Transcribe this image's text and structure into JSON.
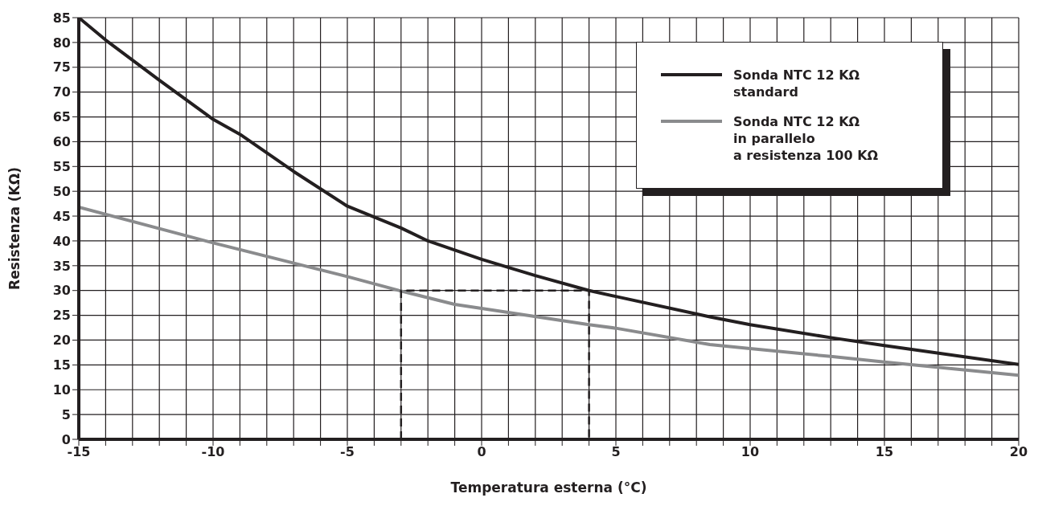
{
  "chart_data": {
    "type": "line",
    "xlabel": "Temperatura esterna (°C)",
    "ylabel": "Resistenza (KΩ)",
    "xlim": [
      -15,
      20
    ],
    "ylim": [
      0,
      85
    ],
    "xticks": [
      -15,
      {
        "value": -14,
        "label": null
      },
      {
        "value": -13,
        "label": null
      },
      {
        "value": -12,
        "label": null
      },
      {
        "value": -11,
        "label": null
      },
      -10,
      {
        "value": -9,
        "label": null
      },
      {
        "value": -8,
        "label": null
      },
      {
        "value": -7,
        "label": null
      },
      {
        "value": -6,
        "label": null
      },
      -5,
      {
        "value": -4,
        "label": null
      },
      {
        "value": -3,
        "label": null
      },
      {
        "value": -2,
        "label": null
      },
      {
        "value": -1,
        "label": null
      },
      0,
      {
        "value": 1,
        "label": null
      },
      {
        "value": 2,
        "label": null
      },
      {
        "value": 3,
        "label": null
      },
      {
        "value": 4,
        "label": null
      },
      5,
      {
        "value": 6,
        "label": null
      },
      {
        "value": 7,
        "label": null
      },
      {
        "value": 8,
        "label": null
      },
      {
        "value": 9,
        "label": null
      },
      10,
      {
        "value": 11,
        "label": null
      },
      {
        "value": 12,
        "label": null
      },
      {
        "value": 13,
        "label": null
      },
      {
        "value": 14,
        "label": null
      },
      15,
      {
        "value": 16,
        "label": null
      },
      {
        "value": 17,
        "label": null
      },
      {
        "value": 18,
        "label": null
      },
      {
        "value": 19,
        "label": null
      },
      20
    ],
    "yticks": [
      0,
      5,
      10,
      15,
      20,
      25,
      30,
      35,
      40,
      45,
      50,
      55,
      60,
      65,
      70,
      75,
      80,
      85
    ],
    "grid": true,
    "legend": "top right",
    "marker": "none",
    "series": [
      {
        "name": "Sonda NTC 12 KΩ\nstandard",
        "color": "#231f20",
        "x": [
          -15,
          -14,
          -12,
          -10,
          -9,
          -7,
          -5,
          -3,
          -2,
          0,
          2,
          4,
          5,
          8.5,
          10,
          13,
          15,
          20
        ],
        "values": [
          85,
          80.5,
          72.4,
          64.5,
          61.5,
          54,
          47,
          42.6,
          40,
          36.3,
          33,
          30,
          28.8,
          24.7,
          23.1,
          20.5,
          18.9,
          15.1
        ]
      },
      {
        "name": "Sonda NTC 12 KΩ\nin parallelo\na resistenza 100 KΩ",
        "color": "#8a8b8d",
        "x": [
          -15,
          -10,
          -5,
          -3,
          -1,
          0,
          4,
          5,
          8.5,
          10,
          13,
          15,
          20
        ],
        "values": [
          46.8,
          39.6,
          32.8,
          29.9,
          27.2,
          26.4,
          23.1,
          22.4,
          19.1,
          18.3,
          16.7,
          15.6,
          12.9
        ]
      },
      {
        "color": "#231f20",
        "line_style": "dashed",
        "x": [
          -3,
          -3,
          4,
          4
        ],
        "values": [
          0,
          30,
          30,
          0
        ]
      }
    ]
  }
}
